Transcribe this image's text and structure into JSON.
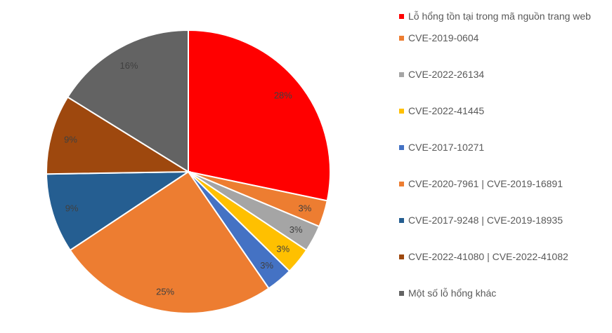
{
  "chart_data": {
    "type": "pie",
    "title": "",
    "categories": [
      "Lỗ hổng tồn tại trong mã nguồn trang web",
      "CVE-2019-0604",
      "CVE-2022-26134",
      "CVE-2022-41445",
      "CVE-2017-10271",
      "CVE-2020-7961 | CVE-2019-16891",
      "CVE-2017-9248 | CVE-2019-18935",
      "CVE-2022-41080 | CVE-2022-41082",
      "Một số lỗ hổng khác"
    ],
    "values": [
      28,
      3,
      3,
      3,
      3,
      25,
      9,
      9,
      16
    ],
    "labels": [
      "28%",
      "3%",
      "3%",
      "3%",
      "3%",
      "25%",
      "9%",
      "9%",
      "16%"
    ],
    "colors": [
      "#FF0000",
      "#ED7D31",
      "#A5A5A5",
      "#FFC000",
      "#4472C4",
      "#ED7D31",
      "#255E91",
      "#9E480E",
      "#636363"
    ],
    "legend_position": "right"
  }
}
